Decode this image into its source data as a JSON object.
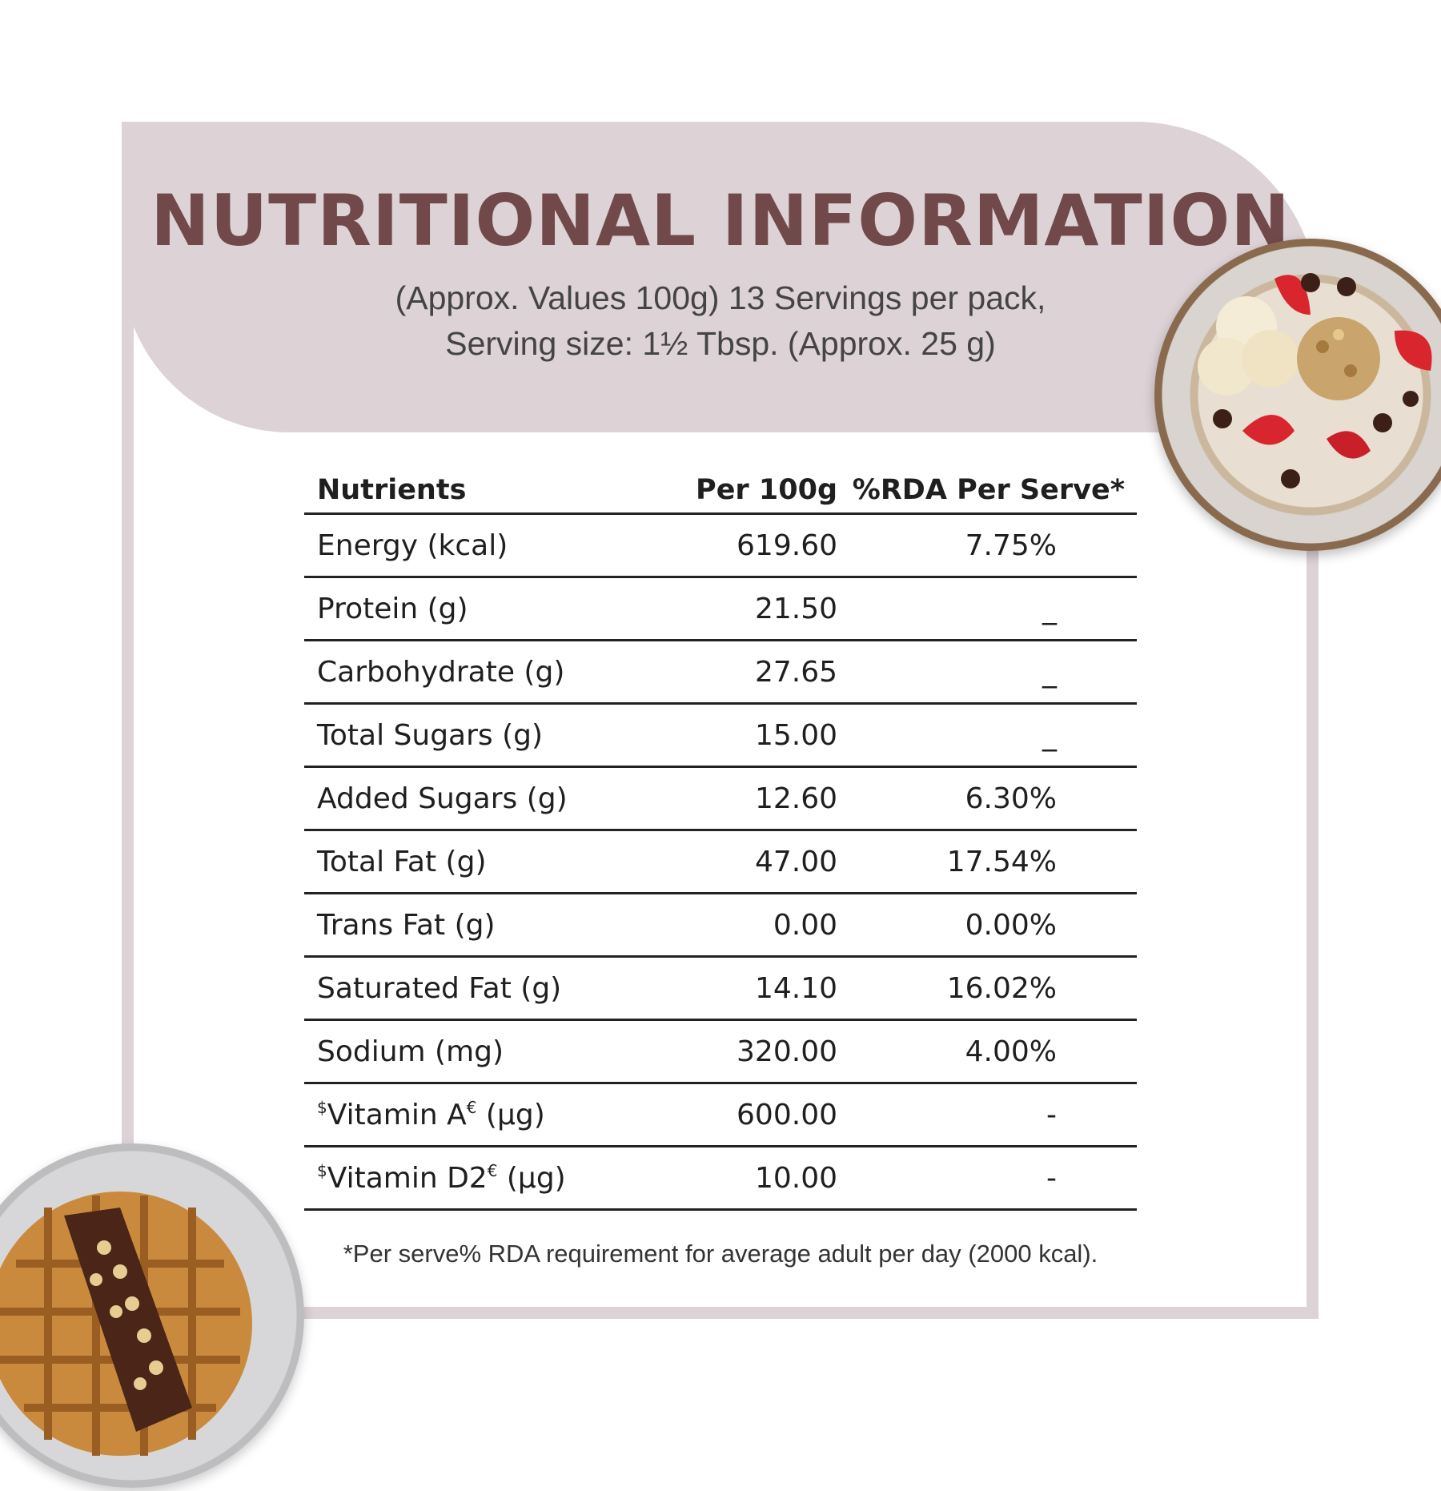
{
  "header": {
    "title": "NUTRITIONAL INFORMATION",
    "subtitle_line1": "(Approx. Values 100g) 13 Servings per pack,",
    "subtitle_line2": "Serving size: 1½ Tbsp. (Approx. 25 g)"
  },
  "table": {
    "columns": [
      "Nutrients",
      "Per 100g",
      "%RDA Per Serve*"
    ],
    "rows": [
      {
        "prefix": "",
        "nutrient": "Energy (kcal)",
        "sup": "",
        "unit": "",
        "per100g": "619.60",
        "rda": "7.75%"
      },
      {
        "prefix": "",
        "nutrient": "Protein (g)",
        "sup": "",
        "unit": "",
        "per100g": "21.50",
        "rda": "_"
      },
      {
        "prefix": "",
        "nutrient": "Carbohydrate (g)",
        "sup": "",
        "unit": "",
        "per100g": "27.65",
        "rda": "_"
      },
      {
        "prefix": "",
        "nutrient": "Total Sugars (g)",
        "sup": "",
        "unit": "",
        "per100g": "15.00",
        "rda": "_"
      },
      {
        "prefix": "",
        "nutrient": "Added Sugars (g)",
        "sup": "",
        "unit": "",
        "per100g": "12.60",
        "rda": "6.30%"
      },
      {
        "prefix": "",
        "nutrient": "Total Fat (g)",
        "sup": "",
        "unit": "",
        "per100g": "47.00",
        "rda": "17.54%"
      },
      {
        "prefix": "",
        "nutrient": "Trans Fat (g)",
        "sup": "",
        "unit": "",
        "per100g": "0.00",
        "rda": "0.00%"
      },
      {
        "prefix": "",
        "nutrient": "Saturated Fat (g)",
        "sup": "",
        "unit": "",
        "per100g": "14.10",
        "rda": "16.02%"
      },
      {
        "prefix": "",
        "nutrient": "Sodium (mg)",
        "sup": "",
        "unit": "",
        "per100g": "320.00",
        "rda": "4.00%"
      },
      {
        "prefix": "$",
        "nutrient": "Vitamin A",
        "sup": "€",
        "unit": " (µg)",
        "per100g": "600.00",
        "rda": "-"
      },
      {
        "prefix": "$",
        "nutrient": "Vitamin D2",
        "sup": "€",
        "unit": " (µg)",
        "per100g": "10.00",
        "rda": "-"
      }
    ]
  },
  "footnote": "*Per serve% RDA requirement for average adult per day (2000 kcal).",
  "images": {
    "top_right": "oatmeal-bowl-with-strawberries-banana-chocolate-nuts",
    "bottom_left": "waffle-with-chocolate-spread-and-peanuts"
  },
  "colors": {
    "accent_band": "#ddd2d6",
    "title": "#72494a",
    "rule": "#222222"
  }
}
